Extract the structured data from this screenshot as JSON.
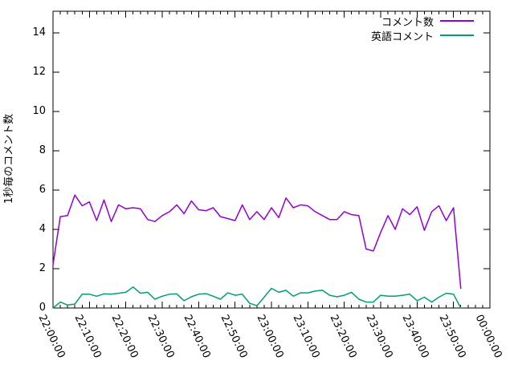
{
  "chart_data": {
    "type": "line",
    "title": "",
    "xlabel": "",
    "ylabel": "1秒毎のコメント数",
    "ylim": [
      0,
      15.1
    ],
    "y_tick_labels": [
      "0",
      "2",
      "4",
      "6",
      "8",
      "10",
      "12",
      "14"
    ],
    "x_tick_labels": [
      "22:00:00",
      "22:10:00",
      "22:20:00",
      "22:30:00",
      "22:40:00",
      "22:50:00",
      "23:00:00",
      "23:10:00",
      "23:20:00",
      "23:30:00",
      "23:40:00",
      "23:50:00",
      "00:00:00"
    ],
    "x_range_minutes": 120,
    "x_major_tick_minutes": 10,
    "x_minor_tick_minutes": 2,
    "grid": false,
    "legend_position": "top-right-inside",
    "x_start": "22:00:00",
    "x_step_seconds": 120,
    "series": [
      {
        "name": "コメント数",
        "color": "#9400d3",
        "values": [
          2.2,
          4.65,
          4.7,
          5.75,
          5.2,
          5.4,
          4.45,
          5.5,
          4.4,
          5.25,
          5.05,
          5.1,
          5.05,
          4.5,
          4.4,
          4.7,
          4.9,
          5.25,
          4.8,
          5.45,
          5.0,
          4.95,
          5.1,
          4.65,
          4.55,
          4.45,
          5.25,
          4.5,
          4.9,
          4.5,
          5.1,
          4.6,
          5.6,
          5.1,
          5.25,
          5.2,
          4.9,
          4.7,
          4.5,
          4.5,
          4.9,
          4.75,
          4.7,
          3.0,
          2.9,
          3.85,
          4.7,
          4.0,
          5.05,
          4.75,
          5.15,
          3.95,
          4.9,
          5.2,
          4.45,
          5.1,
          1.0
        ]
      },
      {
        "name": "英語コメント",
        "color": "#009e73",
        "values": [
          0.0,
          0.3,
          0.15,
          0.2,
          0.7,
          0.7,
          0.6,
          0.72,
          0.7,
          0.75,
          0.8,
          1.07,
          0.75,
          0.8,
          0.45,
          0.6,
          0.7,
          0.72,
          0.37,
          0.57,
          0.7,
          0.73,
          0.6,
          0.45,
          0.77,
          0.65,
          0.7,
          0.24,
          0.12,
          0.55,
          1.0,
          0.8,
          0.9,
          0.6,
          0.77,
          0.77,
          0.86,
          0.9,
          0.65,
          0.57,
          0.65,
          0.8,
          0.45,
          0.3,
          0.3,
          0.65,
          0.6,
          0.6,
          0.65,
          0.7,
          0.37,
          0.55,
          0.3,
          0.55,
          0.75,
          0.7,
          0.0
        ]
      }
    ]
  },
  "colors": {
    "axis": "#000000",
    "text": "#000000",
    "background": "#ffffff"
  }
}
